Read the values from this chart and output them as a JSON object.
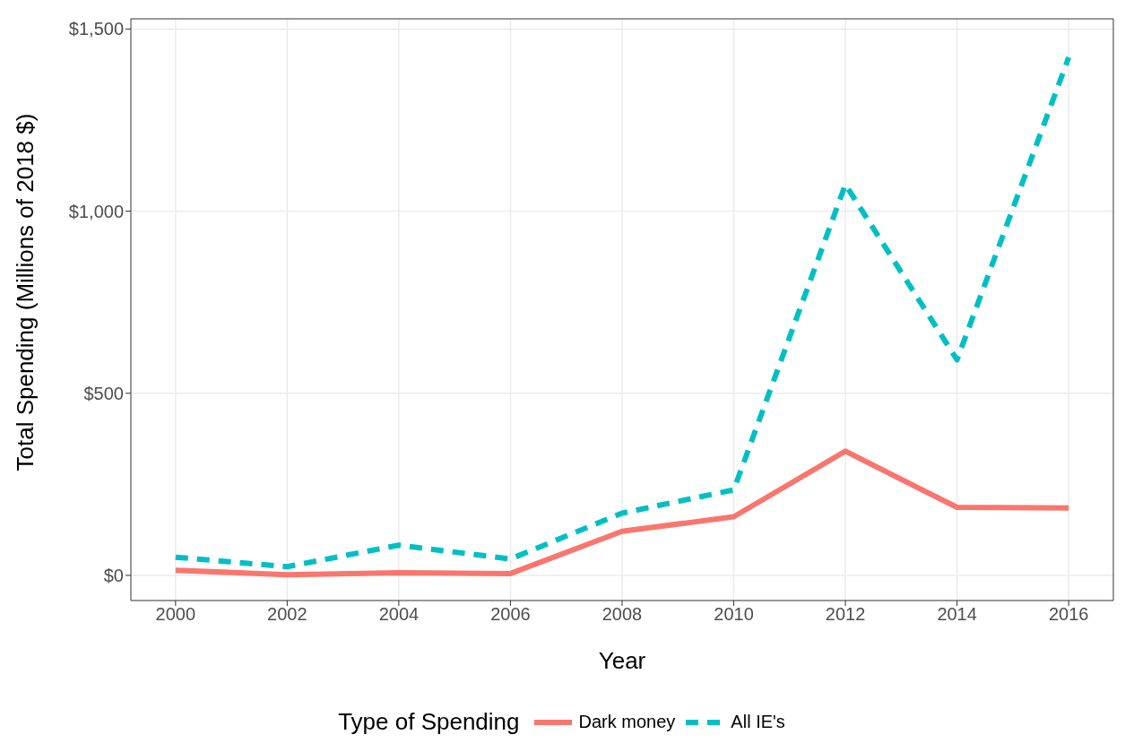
{
  "chart_data": {
    "type": "line",
    "xlabel": "Year",
    "ylabel": "Total Spending (Millions of 2018 $)",
    "legend_title": "Type of Spending",
    "x": [
      2000,
      2002,
      2004,
      2006,
      2008,
      2010,
      2012,
      2014,
      2016
    ],
    "series": [
      {
        "name": "Dark money",
        "color": "#f8766d",
        "line_style": "solid",
        "values": [
          14,
          2,
          7,
          5,
          121,
          161,
          341,
          187,
          185
        ]
      },
      {
        "name": "All IE's",
        "color": "#00bfc4",
        "line_style": "dashed",
        "values": [
          50,
          24,
          83,
          45,
          171,
          235,
          1073,
          592,
          1422
        ]
      }
    ],
    "xlim": [
      1999.2,
      2016.8
    ],
    "ylim": [
      -69,
      1528
    ],
    "xticks": [
      2000,
      2002,
      2004,
      2006,
      2008,
      2010,
      2012,
      2014,
      2016
    ],
    "yticks": [
      {
        "value": 0,
        "label": "$0"
      },
      {
        "value": 500,
        "label": "$500"
      },
      {
        "value": 1000,
        "label": "$1,000"
      },
      {
        "value": 1500,
        "label": "$1,500"
      }
    ],
    "grid": true,
    "legend": "bottom",
    "marker": "none"
  }
}
